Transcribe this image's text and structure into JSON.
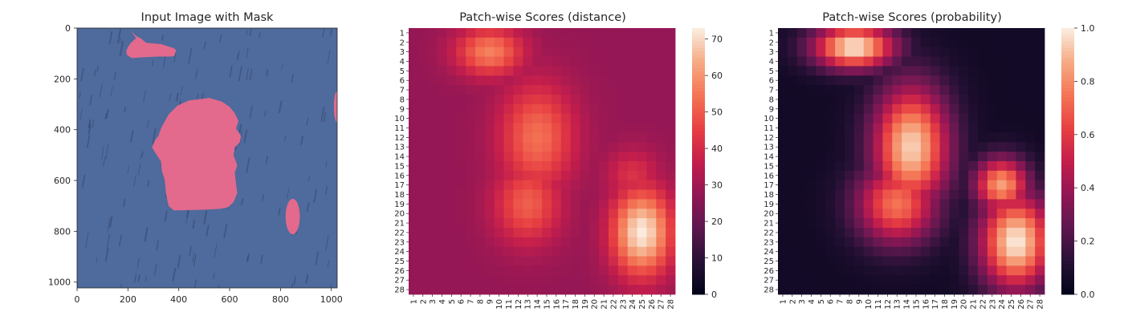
{
  "chart_data": [
    {
      "type": "image",
      "title": "Input Image with Mask",
      "xlim": [
        0,
        1023
      ],
      "ylim": [
        1023,
        0
      ],
      "xticks": [
        0,
        200,
        400,
        600,
        800,
        1000
      ],
      "yticks": [
        0,
        200,
        400,
        600,
        800,
        1000
      ],
      "background_color": "#4f6a9c",
      "mask_color": "#f06a8c",
      "mask_regions": [
        {
          "type": "polygon",
          "points": [
            [
              210,
              8
            ],
            [
              230,
              30
            ],
            [
              250,
              40
            ],
            [
              272,
              58
            ],
            [
              330,
              63
            ],
            [
              382,
              80
            ],
            [
              390,
              88
            ],
            [
              382,
              110
            ],
            [
              372,
              112
            ],
            [
              320,
              112
            ],
            [
              260,
              115
            ],
            [
              215,
              118
            ],
            [
              195,
              105
            ],
            [
              194,
              90
            ],
            [
              200,
              75
            ],
            [
              212,
              58
            ],
            [
              232,
              40
            ],
            [
              210,
              8
            ]
          ]
        },
        {
          "type": "polygon",
          "points": [
            [
              520,
              275
            ],
            [
              570,
              290
            ],
            [
              600,
              310
            ],
            [
              620,
              335
            ],
            [
              635,
              365
            ],
            [
              625,
              395
            ],
            [
              645,
              425
            ],
            [
              640,
              450
            ],
            [
              620,
              470
            ],
            [
              615,
              500
            ],
            [
              630,
              540
            ],
            [
              620,
              570
            ],
            [
              625,
              610
            ],
            [
              630,
              650
            ],
            [
              615,
              685
            ],
            [
              595,
              705
            ],
            [
              560,
              712
            ],
            [
              520,
              714
            ],
            [
              470,
              716
            ],
            [
              380,
              718
            ],
            [
              360,
              700
            ],
            [
              350,
              655
            ],
            [
              345,
              600
            ],
            [
              333,
              560
            ],
            [
              330,
              525
            ],
            [
              310,
              495
            ],
            [
              295,
              470
            ],
            [
              308,
              440
            ],
            [
              320,
              425
            ],
            [
              330,
              395
            ],
            [
              360,
              340
            ],
            [
              395,
              305
            ],
            [
              440,
              285
            ],
            [
              520,
              275
            ]
          ]
        },
        {
          "type": "ellipse",
          "cx": 848,
          "cy": 742,
          "rx": 28,
          "ry": 70
        },
        {
          "type": "ellipse",
          "cx": 1023,
          "cy": 310,
          "rx": 13,
          "ry": 62
        }
      ]
    },
    {
      "type": "heatmap",
      "title": "Patch-wise Scores (distance)",
      "rows": 28,
      "cols": 28,
      "tick_labels": [
        "1",
        "2",
        "3",
        "4",
        "5",
        "6",
        "7",
        "8",
        "9",
        "10",
        "11",
        "12",
        "13",
        "14",
        "15",
        "16",
        "17",
        "18",
        "19",
        "20",
        "21",
        "22",
        "23",
        "24",
        "25",
        "26",
        "27",
        "28"
      ],
      "vmin": 0,
      "vmax": 73,
      "colorbar_ticks": [
        0,
        10,
        20,
        30,
        40,
        50,
        60,
        70
      ],
      "colormap": "rocket",
      "base_value": 28,
      "hotspots": [
        {
          "row": 3,
          "col": 9,
          "value": 57,
          "sigma_r": 1.8,
          "sigma_c": 2.5
        },
        {
          "row": 12,
          "col": 14,
          "value": 54,
          "sigma_r": 4.0,
          "sigma_c": 2.8
        },
        {
          "row": 19,
          "col": 13,
          "value": 51,
          "sigma_r": 3.0,
          "sigma_c": 2.5
        },
        {
          "row": 22,
          "col": 25,
          "value": 73,
          "sigma_r": 3.2,
          "sigma_c": 2.2
        },
        {
          "row": 16,
          "col": 24,
          "value": 42,
          "sigma_r": 2.0,
          "sigma_c": 2.0
        }
      ]
    },
    {
      "type": "heatmap",
      "title": "Patch-wise Scores (probability)",
      "rows": 28,
      "cols": 28,
      "tick_labels": [
        "1",
        "2",
        "3",
        "4",
        "5",
        "6",
        "7",
        "8",
        "9",
        "10",
        "11",
        "12",
        "13",
        "14",
        "15",
        "16",
        "17",
        "18",
        "19",
        "20",
        "21",
        "22",
        "23",
        "24",
        "25",
        "26",
        "27",
        "28"
      ],
      "vmin": 0.0,
      "vmax": 1.0,
      "colorbar_ticks": [
        "0.0",
        "0.2",
        "0.4",
        "0.6",
        "0.8",
        "1.0"
      ],
      "colormap": "rocket",
      "base_value": 0.05,
      "hotspots": [
        {
          "row": 2.5,
          "col": 8.5,
          "value": 1.0,
          "sigma_r": 1.6,
          "sigma_c": 3.0
        },
        {
          "row": 13,
          "col": 14.5,
          "value": 0.95,
          "sigma_r": 4.5,
          "sigma_c": 2.8
        },
        {
          "row": 19,
          "col": 13,
          "value": 0.75,
          "sigma_r": 3.0,
          "sigma_c": 3.0
        },
        {
          "row": 23,
          "col": 25.5,
          "value": 1.0,
          "sigma_r": 3.5,
          "sigma_c": 2.6
        },
        {
          "row": 17,
          "col": 24,
          "value": 0.85,
          "sigma_r": 2.0,
          "sigma_c": 2.0
        }
      ]
    }
  ]
}
